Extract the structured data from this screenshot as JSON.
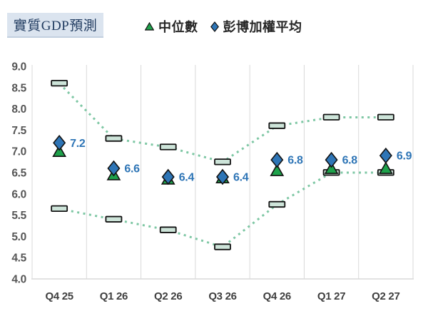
{
  "title": "實質GDP預測",
  "legend": {
    "items": [
      {
        "label": "中位數",
        "marker": "triangle"
      },
      {
        "label": "彭博加權平均",
        "marker": "diamond"
      }
    ]
  },
  "colors": {
    "title_bg": "#dbe4ef",
    "title_text": "#1f3a5f",
    "legend_text": "#262626",
    "median_green": "#1ea24b",
    "avg_blue": "#2e75b6",
    "bound_fill": "#cde4d9",
    "bound_dotted_line": "#7ec7a4",
    "marker_outline": "#121212",
    "grid": "#d9d9d9",
    "tick_text": "#555555",
    "xlabel_text": "#3f3f3f",
    "data_label_blue": "#2e75b6"
  },
  "chart_data": {
    "type": "line",
    "title": "實質GDP預測",
    "categories": [
      "Q4 25",
      "Q1 26",
      "Q2 26",
      "Q3 26",
      "Q4 26",
      "Q1 27",
      "Q2 27"
    ],
    "ylim": [
      4.0,
      9.0
    ],
    "ytick_step": 0.5,
    "ytick_labels": [
      "9.0",
      "8.5",
      "8.0",
      "7.5",
      "7.0",
      "6.5",
      "6.0",
      "5.5",
      "5.0",
      "4.5",
      "4.0"
    ],
    "grid": "vertical-only",
    "legend_position": "top",
    "series": [
      {
        "key": "upper_bound",
        "name": "forecast-range-upper",
        "marker": "dash",
        "line": "dotted",
        "values": [
          8.6,
          7.3,
          7.1,
          6.75,
          7.6,
          7.8,
          7.8
        ]
      },
      {
        "key": "lower_bound",
        "name": "forecast-range-lower",
        "marker": "dash",
        "line": "dotted",
        "values": [
          5.65,
          5.4,
          5.15,
          4.75,
          5.75,
          6.5,
          6.5
        ]
      },
      {
        "key": "median",
        "name": "中位數",
        "marker": "triangle",
        "line": "none",
        "values": [
          7.0,
          6.45,
          6.35,
          6.38,
          6.55,
          6.6,
          6.6
        ]
      },
      {
        "key": "weighted_avg",
        "name": "彭博加權平均",
        "marker": "diamond",
        "line": "none",
        "values": [
          7.2,
          6.6,
          6.4,
          6.4,
          6.8,
          6.8,
          6.9
        ],
        "data_labels": [
          "7.2",
          "6.6",
          "6.4",
          "6.4",
          "6.8",
          "6.8",
          "6.9"
        ]
      }
    ]
  }
}
